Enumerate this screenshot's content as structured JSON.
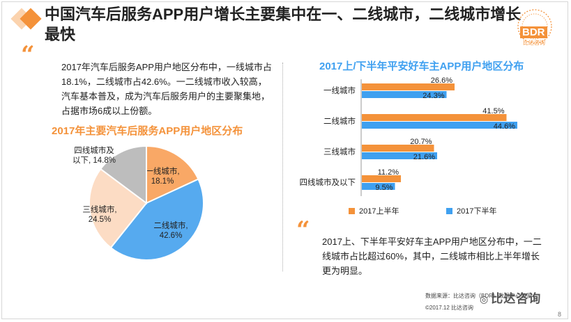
{
  "header": {
    "title": "中国汽车后服务APP用户增长主要集中在一、二线城市，二线城市增长最快",
    "accent": "#f4923a"
  },
  "logo": {
    "name": "BDR",
    "sub": "比达咨询"
  },
  "left": {
    "paragraph": "2017年汽车后服务APP用户地区分布中，一线城市占18.1%，二线城市占42.6%。一二线城市收入较高，汽车基本普及，成为汽车后服务用户的主要聚集地，占据市场6成以上份额。"
  },
  "right": {
    "paragraph": "2017上、下半年平安好车主APP用户地区分布中，一二线城市占比超过60%，其中，二线城市相比上半年增长更为明显。"
  },
  "footer": {
    "source": "数据来源：比达咨询（BDR）数据中心监测",
    "copyright": "©2017.12 比达咨询",
    "watermark": "比达咨询",
    "page": "8"
  },
  "chart_data": [
    {
      "type": "pie",
      "title": "2017年主要汽车后服务APP用户地区分布",
      "unit": "%",
      "slices": [
        {
          "label": "一线城市",
          "value": 18.1,
          "value_label": "18.1%",
          "color": "#f9a866"
        },
        {
          "label": "二线城市",
          "value": 42.6,
          "value_label": "42.6%",
          "color": "#56aaef"
        },
        {
          "label": "三线城市",
          "value": 24.5,
          "value_label": "24.5%",
          "color": "#fcdcc4"
        },
        {
          "label": "四线城市及以下",
          "value": 14.8,
          "value_label": "14.8%",
          "color": "#bdbdbd"
        }
      ]
    },
    {
      "type": "bar",
      "orientation": "horizontal",
      "title": "2017上/下半年平安好车主APP用户地区分布",
      "unit": "%",
      "xlim": [
        0,
        50
      ],
      "categories": [
        "一线城市",
        "二线城市",
        "三线城市",
        "四线城市及以下"
      ],
      "series": [
        {
          "name": "2017上半年",
          "color": "#f4923a",
          "values": [
            26.6,
            41.5,
            20.7,
            11.2
          ],
          "labels": [
            "26.6%",
            "41.5%",
            "20.7%",
            "11.2%"
          ]
        },
        {
          "name": "2017下半年",
          "color": "#3fa0f0",
          "values": [
            24.3,
            44.6,
            21.6,
            9.5
          ],
          "labels": [
            "24.3%",
            "44.6%",
            "21.6%",
            "9.5%"
          ]
        }
      ]
    }
  ]
}
